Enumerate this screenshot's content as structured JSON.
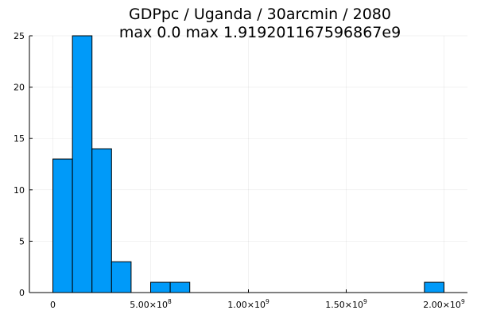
{
  "chart_data": {
    "type": "histogram",
    "title": "GDPpc / Uganda / 30arcmin / 2080",
    "subtitle": "max 0.0  max 1.919201167596867e9",
    "xlabel": "",
    "ylabel": "",
    "bin_width": 100000000,
    "bins": [
      {
        "start": 0,
        "end": 100000000,
        "count": 13
      },
      {
        "start": 100000000,
        "end": 200000000,
        "count": 25
      },
      {
        "start": 200000000,
        "end": 300000000,
        "count": 14
      },
      {
        "start": 300000000,
        "end": 400000000,
        "count": 3
      },
      {
        "start": 400000000,
        "end": 500000000,
        "count": 0
      },
      {
        "start": 500000000,
        "end": 600000000,
        "count": 1
      },
      {
        "start": 600000000,
        "end": 700000000,
        "count": 1
      },
      {
        "start": 700000000,
        "end": 800000000,
        "count": 0
      },
      {
        "start": 800000000,
        "end": 900000000,
        "count": 0
      },
      {
        "start": 900000000,
        "end": 1000000000,
        "count": 0
      },
      {
        "start": 1000000000,
        "end": 1100000000,
        "count": 0
      },
      {
        "start": 1100000000,
        "end": 1200000000,
        "count": 0
      },
      {
        "start": 1200000000,
        "end": 1300000000,
        "count": 0
      },
      {
        "start": 1300000000,
        "end": 1400000000,
        "count": 0
      },
      {
        "start": 1400000000,
        "end": 1500000000,
        "count": 0
      },
      {
        "start": 1500000000,
        "end": 1600000000,
        "count": 0
      },
      {
        "start": 1600000000,
        "end": 1700000000,
        "count": 0
      },
      {
        "start": 1700000000,
        "end": 1800000000,
        "count": 0
      },
      {
        "start": 1800000000,
        "end": 1900000000,
        "count": 0
      },
      {
        "start": 1900000000,
        "end": 2000000000,
        "count": 1
      }
    ],
    "xlim": [
      -120000000,
      2120000000
    ],
    "ylim": [
      0,
      25
    ],
    "x_ticks": [
      {
        "value": 0,
        "mantissa": "0",
        "exponent": ""
      },
      {
        "value": 500000000,
        "mantissa": "5.00×10",
        "exponent": "8"
      },
      {
        "value": 1000000000,
        "mantissa": "1.00×10",
        "exponent": "9"
      },
      {
        "value": 1500000000,
        "mantissa": "1.50×10",
        "exponent": "9"
      },
      {
        "value": 2000000000,
        "mantissa": "2.00×10",
        "exponent": "9"
      }
    ],
    "y_ticks": [
      0,
      5,
      10,
      15,
      20,
      25
    ],
    "grid": true,
    "legend": "none",
    "bar_color": "#009af9"
  }
}
